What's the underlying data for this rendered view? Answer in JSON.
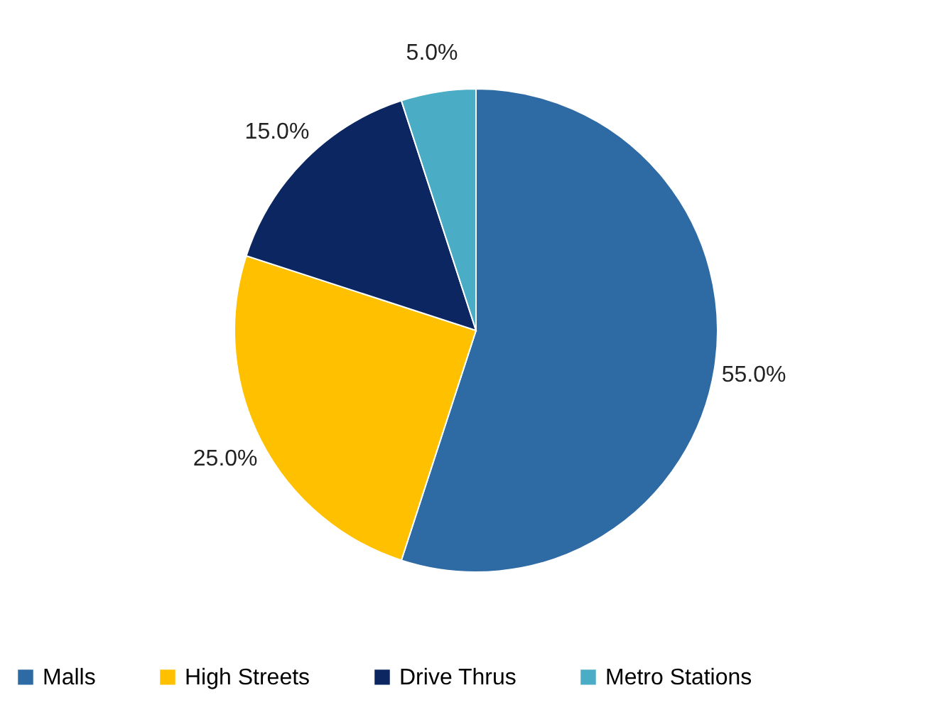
{
  "chart_data": {
    "type": "pie",
    "categories": [
      "Malls",
      "High Streets",
      "Drive Thrus",
      "Metro Stations"
    ],
    "values": [
      55,
      25,
      15,
      5
    ],
    "colors": [
      "#2e6aa3",
      "#ffc000",
      "#0b2660",
      "#4bacc6"
    ],
    "value_labels": [
      "55.0%",
      "25.0%",
      "15.0%",
      "5.0%"
    ],
    "legend": "bottom"
  }
}
